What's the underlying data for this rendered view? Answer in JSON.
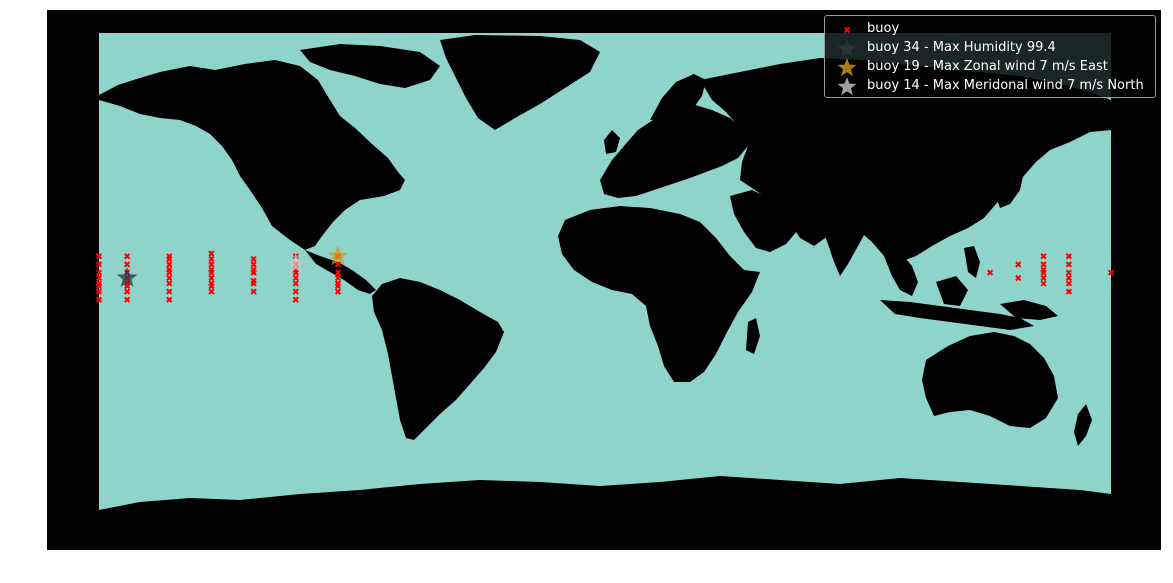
{
  "map": {
    "ocean_color": "#8fd4cb",
    "land_color": "#000000",
    "background_color": "#000000",
    "buoy_marker_color": "#ff0000"
  },
  "buoys": {
    "lon": [
      -180,
      -180,
      -180,
      -180,
      -180,
      -180,
      -180,
      -180,
      -170,
      -170,
      -170,
      -170,
      -170,
      -170,
      -170,
      -170,
      -155,
      -155,
      -155,
      -155,
      -155,
      -155,
      -155,
      -155,
      -155,
      -140,
      -140,
      -140,
      -140,
      -140,
      -140,
      -140,
      -140,
      -140,
      -125,
      -125,
      -125,
      -125,
      -125,
      -125,
      -125,
      -110,
      -110,
      -110,
      -110,
      -110,
      -110,
      -110,
      -110,
      -95,
      -95,
      -95,
      -95,
      -95,
      -95,
      -95,
      137,
      147,
      147,
      156,
      156,
      156,
      156,
      156,
      156,
      165,
      165,
      165,
      165,
      165,
      165,
      180
    ],
    "lat": [
      8,
      5,
      2,
      0,
      -2,
      -3,
      -5,
      -8,
      8,
      5,
      2,
      0,
      -2,
      -3,
      -5,
      -8,
      8,
      7,
      5,
      3,
      2,
      0,
      -2,
      -5,
      -8,
      9,
      7,
      5,
      3,
      2,
      0,
      -2,
      -3,
      -5,
      7,
      5,
      3,
      2,
      -1,
      -2,
      -5,
      8,
      5,
      3,
      2,
      0,
      -2,
      -5,
      -8,
      8,
      5,
      2,
      0,
      -2,
      -3,
      -5,
      2,
      5,
      0,
      8,
      5,
      3,
      2,
      0,
      -2,
      8,
      5,
      2,
      0,
      -2,
      -5,
      2
    ]
  },
  "highlights": [
    {
      "label": "buoy 34 - Max Humidity 99.4",
      "lon": -170,
      "lat": 0,
      "color": "#2a3a3a"
    },
    {
      "label": "buoy 19 - Max Zonal wind 7 m/s East",
      "lon": -95,
      "lat": 8,
      "color": "#d39a1a"
    },
    {
      "label": "buoy 14 - Max Meridonal wind 7 m/s North",
      "lon": -110,
      "lat": 5,
      "color": "#c8c8c8"
    }
  ],
  "legend": {
    "buoy_label": "buoy"
  }
}
